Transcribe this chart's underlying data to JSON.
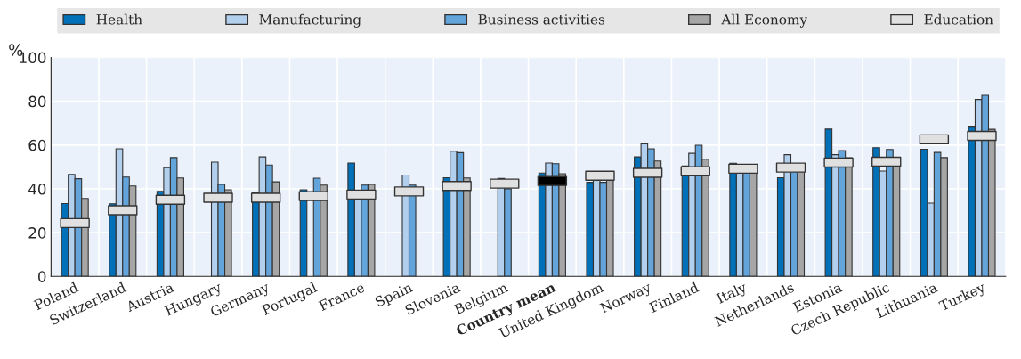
{
  "chart_data": {
    "type": "bar",
    "ylabel": "%",
    "categories": [
      "Poland",
      "Switzerland",
      "Austria",
      "Hungary",
      "Germany",
      "Portugal",
      "France",
      "Spain",
      "Slovenia",
      "Belgium",
      "Country mean",
      "United Kingdom",
      "Norway",
      "Finland",
      "Italy",
      "Netherlands",
      "Estonia",
      "Czech Republic",
      "Lithuania",
      "Turkey"
    ],
    "series": [
      {
        "name": "Health",
        "color": "#0070b8",
        "values": [
          33.3,
          33.2,
          38.9,
          null,
          38.1,
          39.6,
          51.8,
          null,
          45.1,
          null,
          47.2,
          43,
          54.6,
          50.4,
          51.7,
          45.1,
          67.3,
          58.8,
          58.1,
          68.2
        ]
      },
      {
        "name": "Manufacturing",
        "color": "#b3cfee",
        "values": [
          46.6,
          58.3,
          49.7,
          52.2,
          54.6,
          null,
          36,
          46.3,
          57.2,
          44.7,
          51.8,
          45,
          60.6,
          56.2,
          48,
          55.6,
          55.6,
          48.1,
          33.5,
          80.8
        ]
      },
      {
        "name": "Business activities",
        "color": "#63a4db",
        "values": [
          44.6,
          45.4,
          54.3,
          42,
          50.9,
          44.9,
          41.7,
          41.7,
          56.5,
          40,
          51.5,
          43,
          58.3,
          59.9,
          48,
          48.5,
          57.5,
          58,
          56.6,
          82.7
        ]
      },
      {
        "name": "All Economy",
        "color": "#a6a6a6",
        "values": [
          35.6,
          41.3,
          45,
          39.6,
          43.2,
          41.7,
          42,
          null,
          45,
          null,
          46.9,
          45,
          52.7,
          53.5,
          47.2,
          48.5,
          54.2,
          51,
          54.3,
          67.2
        ]
      },
      {
        "name": "Education",
        "type": "scatter",
        "marker": "square",
        "color": "#e0e0e0",
        "colors": [
          "#e0e0e0",
          "#e0e0e0",
          "#e0e0e0",
          "#e0e0e0",
          "#e0e0e0",
          "#e0e0e0",
          "#e0e0e0",
          "#e0e0e0",
          "#e0e0e0",
          "#e0e0e0",
          "#000000",
          "#e0e0e0",
          "#e0e0e0",
          "#e0e0e0",
          "#e0e0e0",
          "#e0e0e0",
          "#e0e0e0",
          "#e0e0e0",
          "#e0e0e0",
          "#e0e0e0"
        ],
        "values": [
          24.4,
          30.2,
          35,
          35.9,
          35.9,
          36.7,
          37.4,
          38.8,
          41.3,
          42.4,
          43.6,
          46,
          47.3,
          48,
          49.2,
          49.7,
          52,
          52.4,
          62.6,
          64.2
        ]
      }
    ],
    "ylim": [
      0,
      100
    ],
    "yticks": [
      0,
      20,
      40,
      60,
      80,
      100
    ],
    "grid": true,
    "legend": "top"
  }
}
